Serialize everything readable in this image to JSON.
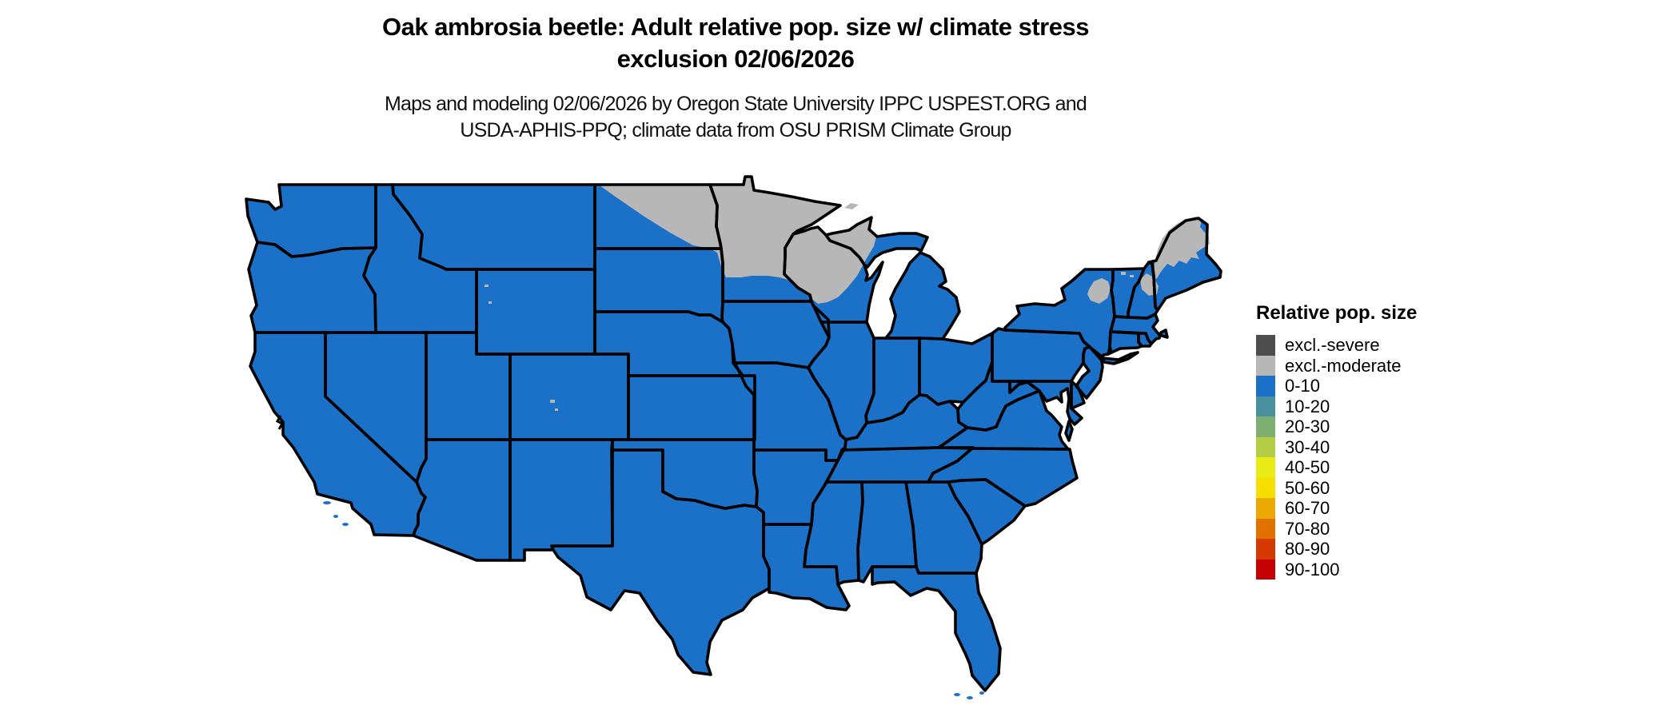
{
  "title": {
    "line1": "Oak ambrosia beetle: Adult relative pop. size w/ climate stress",
    "line2": "exclusion 02/06/2026"
  },
  "subtitle": {
    "line1": "Maps and modeling 02/06/2026 by Oregon State University IPPC USPEST.ORG and",
    "line2": "USDA-APHIS-PPQ; climate data from OSU PRISM Climate Group"
  },
  "legend": {
    "title": "Relative pop. size",
    "items": [
      {
        "label": "excl.-severe",
        "color": "#4d4d4d"
      },
      {
        "label": "excl.-moderate",
        "color": "#b7b7b7"
      },
      {
        "label": "0-10",
        "color": "#1b71c7"
      },
      {
        "label": "10-20",
        "color": "#4a8f9e"
      },
      {
        "label": "20-30",
        "color": "#7daf70"
      },
      {
        "label": "30-40",
        "color": "#b4cd44"
      },
      {
        "label": "40-50",
        "color": "#e9eb16"
      },
      {
        "label": "50-60",
        "color": "#f6df00"
      },
      {
        "label": "60-70",
        "color": "#eca904"
      },
      {
        "label": "70-80",
        "color": "#e17200"
      },
      {
        "label": "80-90",
        "color": "#d43900"
      },
      {
        "label": "90-100",
        "color": "#c50000"
      }
    ]
  },
  "map": {
    "colors": {
      "land": "#1b71c7",
      "exclusion_moderate": "#b7b7b7",
      "exclusion_severe": "#4d4d4d",
      "border": "#000000",
      "water": "#ffffff"
    },
    "default_category": "0-10",
    "regions": [
      {
        "id": "WA",
        "name": "Washington",
        "category": "0-10"
      },
      {
        "id": "OR",
        "name": "Oregon",
        "category": "0-10"
      },
      {
        "id": "CA",
        "name": "California",
        "category": "0-10"
      },
      {
        "id": "NV",
        "name": "Nevada",
        "category": "0-10"
      },
      {
        "id": "ID",
        "name": "Idaho",
        "category": "0-10"
      },
      {
        "id": "MT",
        "name": "Montana",
        "category": "0-10"
      },
      {
        "id": "WY",
        "name": "Wyoming",
        "category": "0-10",
        "partial_moderate_exclusion": true
      },
      {
        "id": "UT",
        "name": "Utah",
        "category": "0-10"
      },
      {
        "id": "CO",
        "name": "Colorado",
        "category": "0-10",
        "partial_moderate_exclusion": true
      },
      {
        "id": "AZ",
        "name": "Arizona",
        "category": "0-10"
      },
      {
        "id": "NM",
        "name": "New Mexico",
        "category": "0-10"
      },
      {
        "id": "TX",
        "name": "Texas",
        "category": "0-10"
      },
      {
        "id": "OK",
        "name": "Oklahoma",
        "category": "0-10"
      },
      {
        "id": "KS",
        "name": "Kansas",
        "category": "0-10"
      },
      {
        "id": "NE",
        "name": "Nebraska",
        "category": "0-10"
      },
      {
        "id": "SD",
        "name": "South Dakota",
        "category": "0-10"
      },
      {
        "id": "ND",
        "name": "North Dakota",
        "category": "0-10",
        "partial_moderate_exclusion": true
      },
      {
        "id": "MN",
        "name": "Minnesota",
        "category": "0-10",
        "partial_moderate_exclusion": true
      },
      {
        "id": "IA",
        "name": "Iowa",
        "category": "0-10"
      },
      {
        "id": "MO",
        "name": "Missouri",
        "category": "0-10"
      },
      {
        "id": "AR",
        "name": "Arkansas",
        "category": "0-10"
      },
      {
        "id": "LA",
        "name": "Louisiana",
        "category": "0-10"
      },
      {
        "id": "WI",
        "name": "Wisconsin",
        "category": "0-10",
        "partial_moderate_exclusion": true
      },
      {
        "id": "IL",
        "name": "Illinois",
        "category": "0-10"
      },
      {
        "id": "MI",
        "name": "Michigan",
        "category": "0-10",
        "partial_moderate_exclusion": true
      },
      {
        "id": "IN",
        "name": "Indiana",
        "category": "0-10"
      },
      {
        "id": "OH",
        "name": "Ohio",
        "category": "0-10"
      },
      {
        "id": "KY",
        "name": "Kentucky",
        "category": "0-10"
      },
      {
        "id": "TN",
        "name": "Tennessee",
        "category": "0-10"
      },
      {
        "id": "MS",
        "name": "Mississippi",
        "category": "0-10"
      },
      {
        "id": "AL",
        "name": "Alabama",
        "category": "0-10"
      },
      {
        "id": "GA",
        "name": "Georgia",
        "category": "0-10"
      },
      {
        "id": "FL",
        "name": "Florida",
        "category": "0-10"
      },
      {
        "id": "SC",
        "name": "South Carolina",
        "category": "0-10"
      },
      {
        "id": "NC",
        "name": "North Carolina",
        "category": "0-10"
      },
      {
        "id": "VA",
        "name": "Virginia",
        "category": "0-10"
      },
      {
        "id": "WV",
        "name": "West Virginia",
        "category": "0-10"
      },
      {
        "id": "MD",
        "name": "Maryland",
        "category": "0-10"
      },
      {
        "id": "DE",
        "name": "Delaware",
        "category": "0-10"
      },
      {
        "id": "NJ",
        "name": "New Jersey",
        "category": "0-10"
      },
      {
        "id": "PA",
        "name": "Pennsylvania",
        "category": "0-10"
      },
      {
        "id": "NY",
        "name": "New York",
        "category": "0-10",
        "partial_moderate_exclusion": true
      },
      {
        "id": "VT",
        "name": "Vermont",
        "category": "0-10",
        "partial_moderate_exclusion": true
      },
      {
        "id": "NH",
        "name": "New Hampshire",
        "category": "0-10",
        "partial_moderate_exclusion": true
      },
      {
        "id": "ME",
        "name": "Maine",
        "category": "0-10",
        "partial_moderate_exclusion": true
      },
      {
        "id": "MA",
        "name": "Massachusetts",
        "category": "0-10"
      },
      {
        "id": "RI",
        "name": "Rhode Island",
        "category": "0-10"
      },
      {
        "id": "CT",
        "name": "Connecticut",
        "category": "0-10"
      }
    ],
    "exclusion_moderate_zones": [
      "northeastern North Dakota",
      "northern and central Minnesota",
      "northern Wisconsin",
      "western Upper Peninsula of Michigan",
      "Isle Royale",
      "northern Maine",
      "White Mountains (New Hampshire)",
      "Adirondacks (New York)",
      "scattered high Rockies (Wyoming / Colorado)"
    ]
  }
}
